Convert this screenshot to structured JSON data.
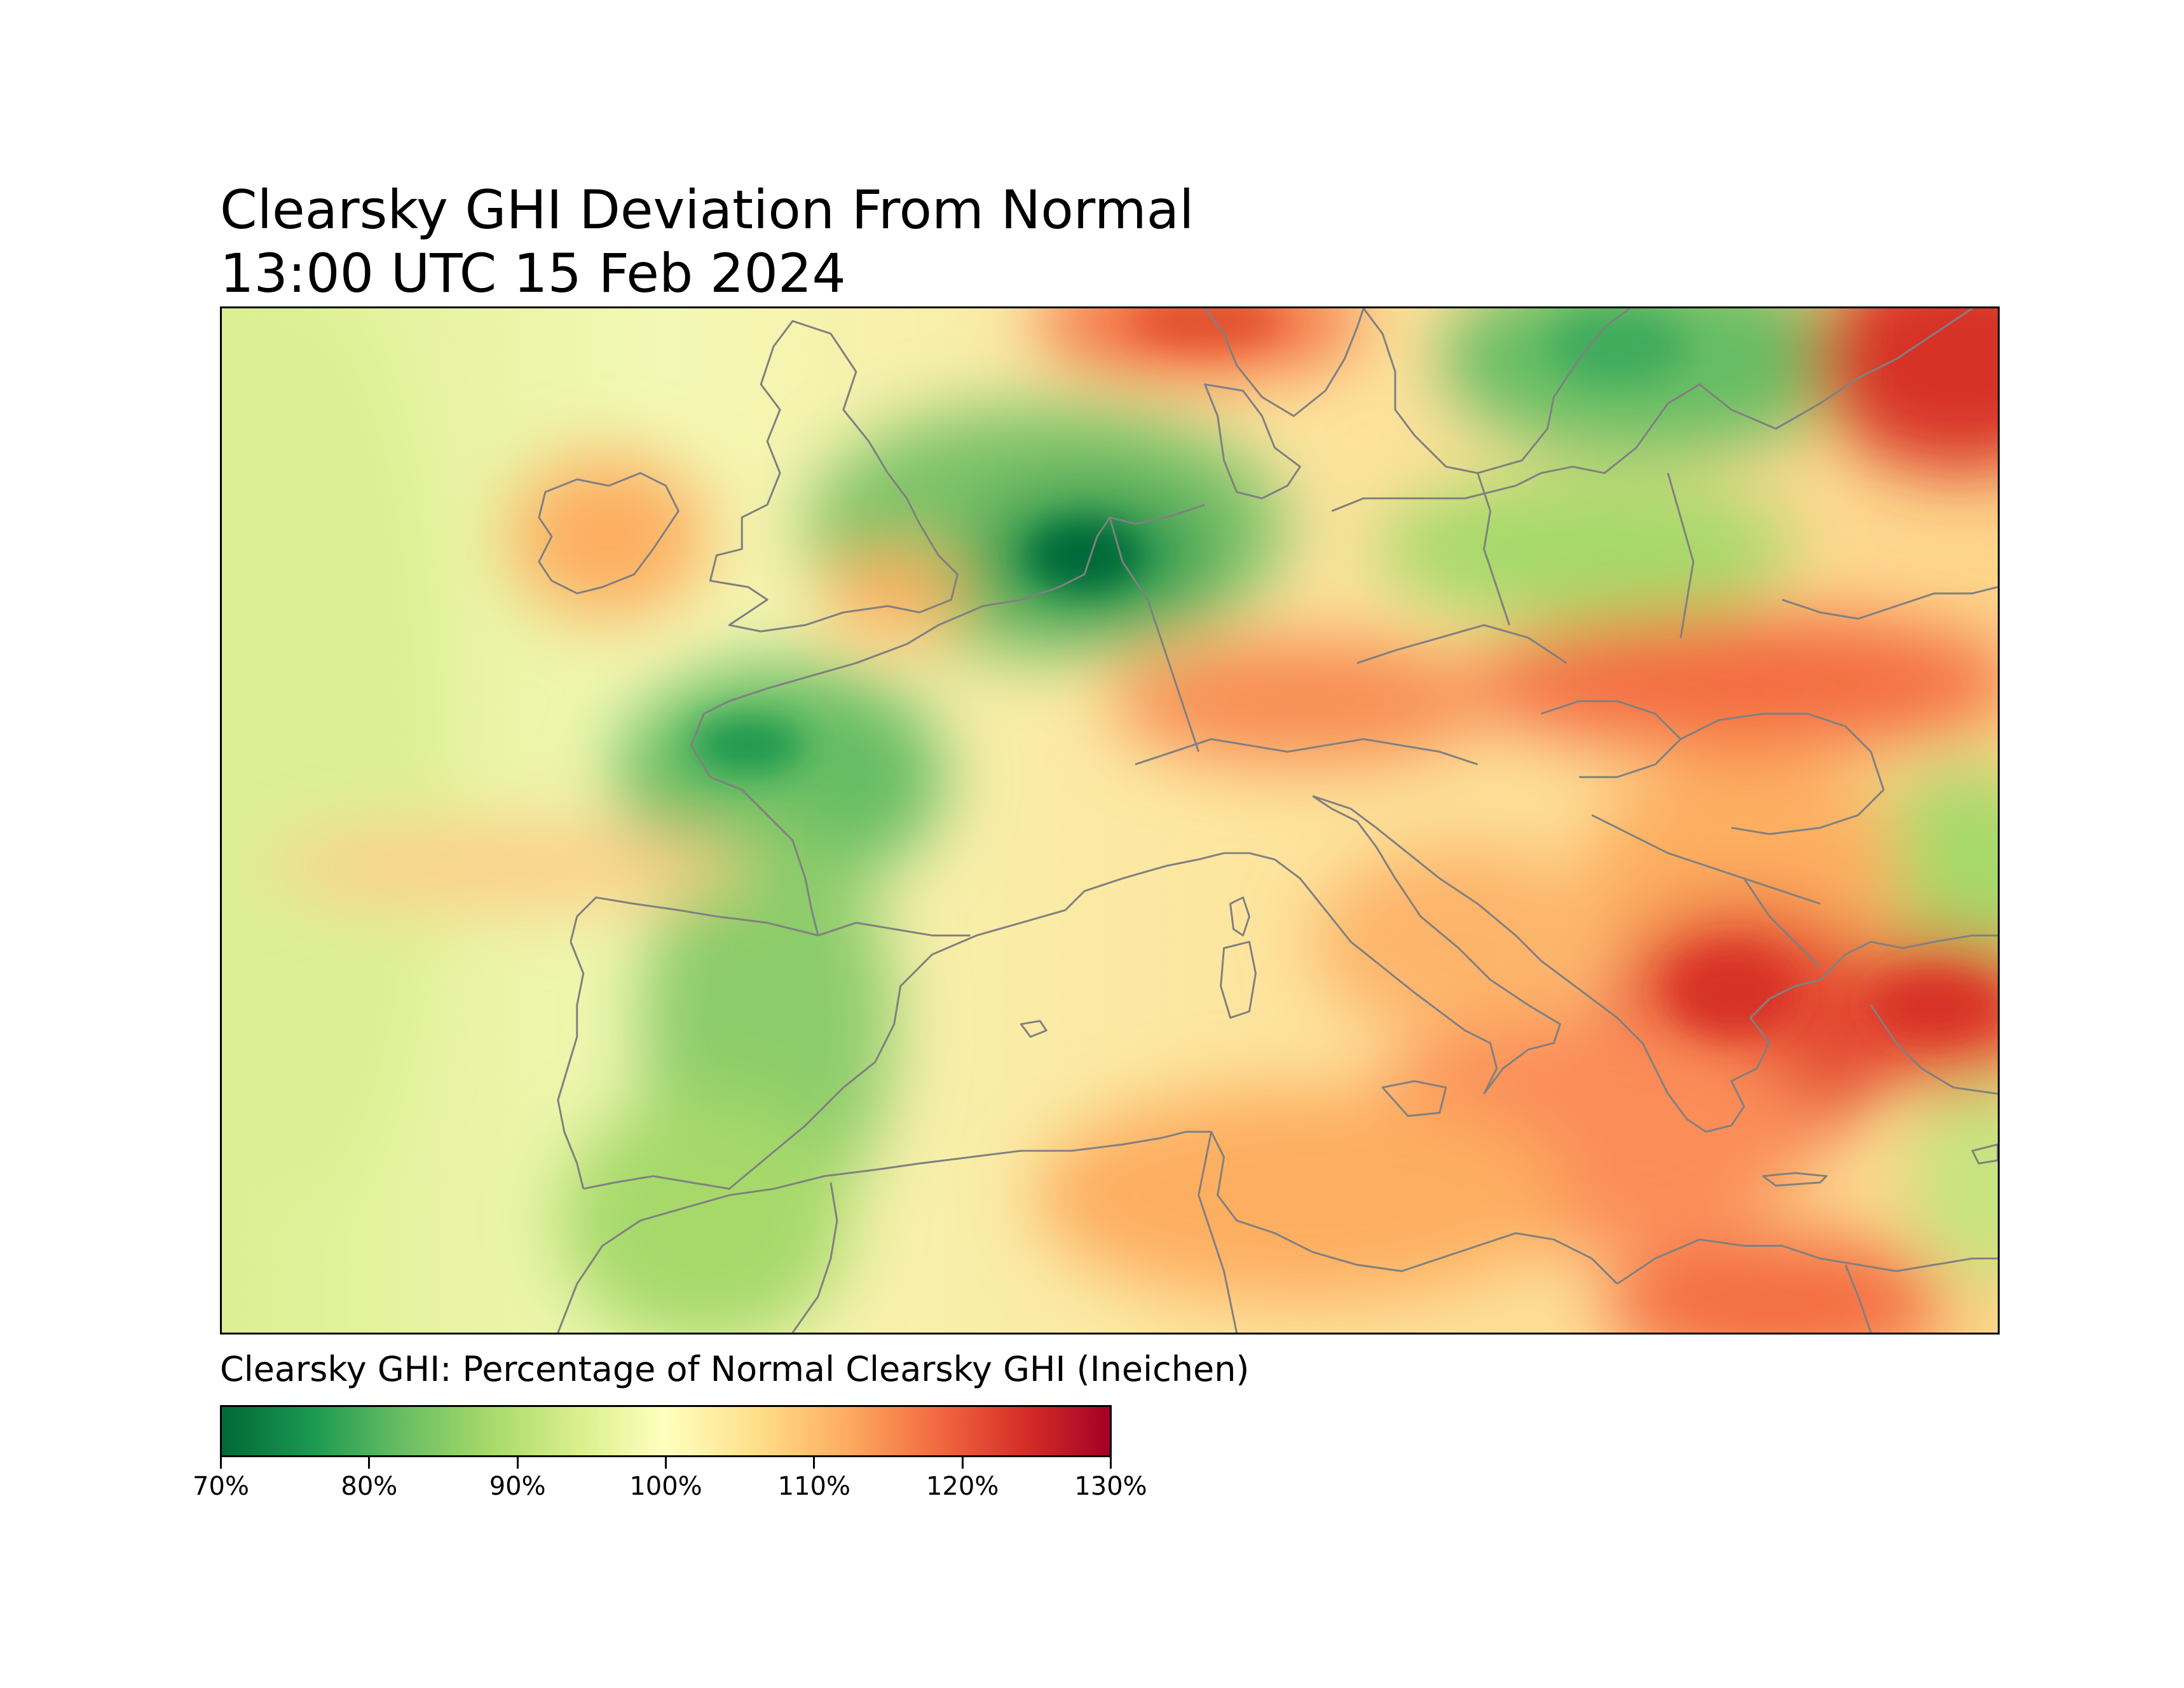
{
  "title": {
    "line1": "Clearsky GHI Deviation From Normal",
    "line2": "13:00 UTC 15 Feb 2024"
  },
  "colorbar": {
    "label": "Clearsky GHI: Percentage of Normal Clearsky GHI (Ineichen)",
    "colormap": "RdYlGn_r",
    "range": [
      70,
      130
    ],
    "stops": [
      "#006837",
      "#1a9850",
      "#66bd63",
      "#a6d96a",
      "#d9ef8b",
      "#ffffbf",
      "#fee08b",
      "#fdae61",
      "#f46d43",
      "#d73027",
      "#a50026"
    ],
    "ticks": [
      {
        "value": 70,
        "label": "70%"
      },
      {
        "value": 80,
        "label": "80%"
      },
      {
        "value": 90,
        "label": "90%"
      },
      {
        "value": 100,
        "label": "100%"
      },
      {
        "value": 110,
        "label": "110%"
      },
      {
        "value": 120,
        "label": "120%"
      },
      {
        "value": 130,
        "label": "130%"
      }
    ]
  },
  "map": {
    "region": "Europe and North Africa",
    "border_color": "#808080",
    "background_value": 100
  }
}
